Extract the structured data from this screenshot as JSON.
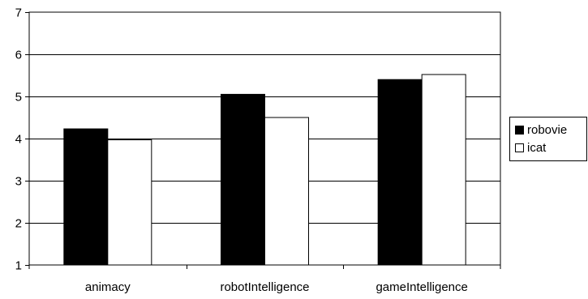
{
  "chart_data": {
    "type": "bar",
    "categories": [
      "animacy",
      "robotIntelligence",
      "gameIntelligence"
    ],
    "series": [
      {
        "name": "robovie",
        "values": [
          4.23,
          5.05,
          5.4
        ],
        "color": "#000000"
      },
      {
        "name": "icat",
        "values": [
          3.97,
          4.5,
          5.52
        ],
        "color": "#ffffff"
      }
    ],
    "ylim": [
      1,
      7
    ],
    "yticks": [
      "1",
      "2",
      "3",
      "4",
      "5",
      "6",
      "7"
    ],
    "grid": true,
    "legend_position": "right"
  }
}
